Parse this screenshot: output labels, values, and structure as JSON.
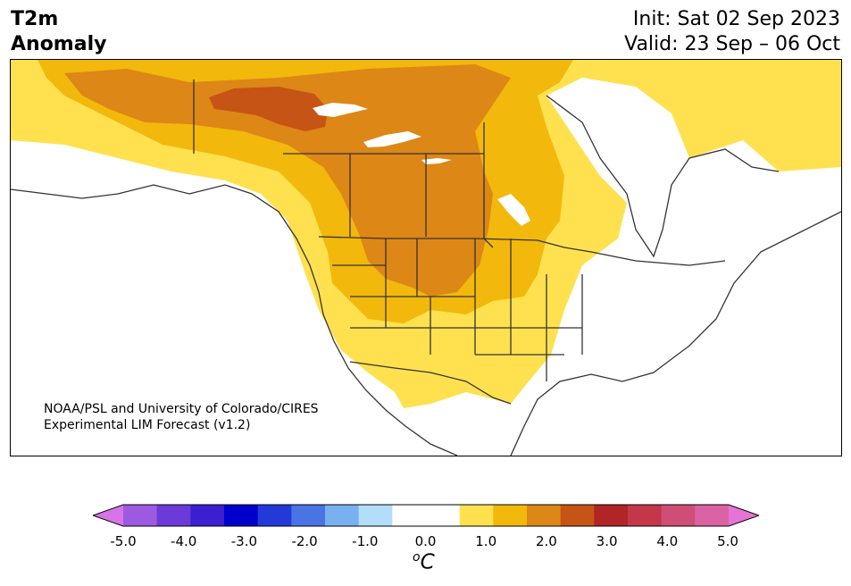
{
  "header": {
    "title_line1": "T2m",
    "title_line2": "Anomaly",
    "init": "Init: Sat 02 Sep 2023",
    "valid": "Valid: 23 Sep – 06 Oct"
  },
  "map": {
    "region": "North America",
    "credit_line1": "NOAA/PSL and University of Colorado/CIRES",
    "credit_line2": "Experimental LIM Forecast (v1.2)",
    "shading_colors": {
      "0.5-1.0": "#ffe150",
      "1.0-1.5": "#f2b80c",
      "1.5-2.0": "#dd8716",
      "2.0-2.5": "#c65414",
      "land": "#ffffff",
      "lakes": "#ffffff",
      "borders": "#333333"
    }
  },
  "colorbar": {
    "unit_base": "C",
    "unit_super": "o",
    "ticks": [
      "-5.0",
      "-4.0",
      "-3.0",
      "-2.0",
      "-1.0",
      "0.0",
      "1.0",
      "2.0",
      "3.0",
      "4.0",
      "5.0"
    ],
    "bins": [
      {
        "range": "< -5.0",
        "color": "#d873e8"
      },
      {
        "range": "-5.0 to -4.5",
        "color": "#9c5ae0"
      },
      {
        "range": "-4.5 to -4.0",
        "color": "#6c3ad8"
      },
      {
        "range": "-4.0 to -3.5",
        "color": "#3b1fd0"
      },
      {
        "range": "-3.5 to -3.0",
        "color": "#0000cd"
      },
      {
        "range": "-3.0 to -2.5",
        "color": "#2339d8"
      },
      {
        "range": "-2.5 to -2.0",
        "color": "#4a73e3"
      },
      {
        "range": "-2.0 to -1.5",
        "color": "#78b0f0"
      },
      {
        "range": "-1.5 to -1.0",
        "color": "#b3defa"
      },
      {
        "range": "-1.0 to -0.5",
        "color": "#ffffff"
      },
      {
        "range": "-0.5 to 0.5",
        "color": "#ffffff"
      },
      {
        "range": "0.5 to 1.0",
        "color": "#ffe150"
      },
      {
        "range": "1.0 to 1.5",
        "color": "#f2b80c"
      },
      {
        "range": "1.5 to 2.0",
        "color": "#dd8716"
      },
      {
        "range": "2.0 to 2.5",
        "color": "#c65414"
      },
      {
        "range": "2.5 to 3.0",
        "color": "#b02525"
      },
      {
        "range": "3.0 to 3.5",
        "color": "#c33848"
      },
      {
        "range": "3.5 to 4.0",
        "color": "#cf4e78"
      },
      {
        "range": "4.0 to 4.5",
        "color": "#db63a4"
      },
      {
        "range": "> 4.5",
        "color": "#e673d6"
      }
    ]
  }
}
